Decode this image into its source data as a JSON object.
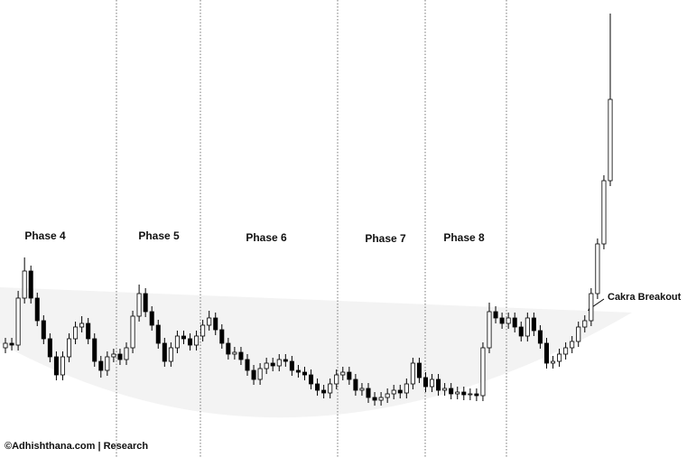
{
  "chart_data": {
    "type": "candlestick",
    "phases": [
      "Phase 4",
      "Phase 5",
      "Phase 6",
      "Phase 7",
      "Phase 8"
    ],
    "annotation": "Cakra Breakout",
    "footer": "©Adhishthana.com | Research",
    "up_color": "#ffffff",
    "down_color": "#000000",
    "wick_color": "#000000",
    "open": [
      115,
      120,
      118,
      170,
      200,
      170,
      145,
      125,
      105,
      85,
      105,
      125,
      138,
      142,
      125,
      100,
      90,
      105,
      108,
      102,
      115,
      150,
      175,
      155,
      140,
      120,
      100,
      115,
      128,
      125,
      118,
      128,
      140,
      148,
      135,
      120,
      108,
      110,
      102,
      90,
      80,
      92,
      98,
      95,
      102,
      100,
      90,
      88,
      85,
      75,
      68,
      65,
      75,
      85,
      88,
      80,
      68,
      70,
      60,
      57,
      60,
      64,
      68,
      65,
      75,
      98,
      82,
      72,
      80,
      68,
      70,
      64,
      66,
      63,
      64,
      62,
      115,
      155,
      148,
      142,
      148,
      138,
      128,
      148,
      134,
      120,
      98,
      100,
      108,
      115,
      122,
      138,
      145,
      175,
      230,
      300
    ],
    "high": [
      126,
      126,
      178,
      215,
      206,
      176,
      151,
      131,
      111,
      111,
      131,
      144,
      150,
      148,
      131,
      106,
      111,
      114,
      114,
      121,
      156,
      185,
      181,
      161,
      146,
      126,
      121,
      134,
      134,
      131,
      134,
      146,
      156,
      154,
      141,
      126,
      116,
      116,
      108,
      96,
      98,
      104,
      104,
      108,
      108,
      106,
      96,
      94,
      91,
      81,
      74,
      81,
      91,
      94,
      94,
      86,
      76,
      76,
      66,
      66,
      70,
      74,
      74,
      81,
      104,
      104,
      88,
      86,
      86,
      76,
      76,
      72,
      72,
      70,
      70,
      121,
      165,
      161,
      154,
      154,
      154,
      144,
      154,
      154,
      140,
      126,
      106,
      114,
      121,
      128,
      144,
      151,
      181,
      236,
      306,
      485
    ],
    "low": [
      109,
      112,
      112,
      164,
      164,
      139,
      119,
      99,
      79,
      79,
      99,
      119,
      132,
      119,
      94,
      82,
      84,
      99,
      96,
      96,
      109,
      144,
      149,
      134,
      114,
      94,
      94,
      109,
      119,
      112,
      112,
      122,
      134,
      129,
      114,
      102,
      102,
      96,
      84,
      74,
      74,
      86,
      89,
      89,
      94,
      84,
      82,
      79,
      69,
      62,
      59,
      59,
      69,
      79,
      74,
      62,
      62,
      54,
      51,
      51,
      54,
      58,
      59,
      59,
      69,
      76,
      66,
      66,
      62,
      62,
      58,
      58,
      57,
      57,
      56,
      56,
      109,
      142,
      136,
      136,
      132,
      122,
      122,
      128,
      114,
      92,
      92,
      94,
      102,
      109,
      116,
      132,
      139,
      169,
      224,
      294
    ],
    "close": [
      120,
      118,
      170,
      200,
      170,
      145,
      125,
      105,
      85,
      105,
      125,
      138,
      142,
      125,
      100,
      90,
      105,
      108,
      102,
      115,
      150,
      175,
      155,
      140,
      120,
      100,
      115,
      128,
      125,
      118,
      128,
      140,
      148,
      135,
      120,
      108,
      110,
      102,
      90,
      80,
      92,
      98,
      95,
      102,
      100,
      90,
      88,
      85,
      75,
      68,
      65,
      75,
      85,
      88,
      80,
      68,
      70,
      60,
      57,
      60,
      64,
      68,
      65,
      75,
      98,
      82,
      72,
      80,
      68,
      70,
      64,
      66,
      63,
      64,
      62,
      115,
      155,
      148,
      142,
      148,
      138,
      128,
      148,
      134,
      120,
      98,
      100,
      108,
      115,
      122,
      138,
      145,
      175,
      230,
      300,
      390
    ]
  }
}
